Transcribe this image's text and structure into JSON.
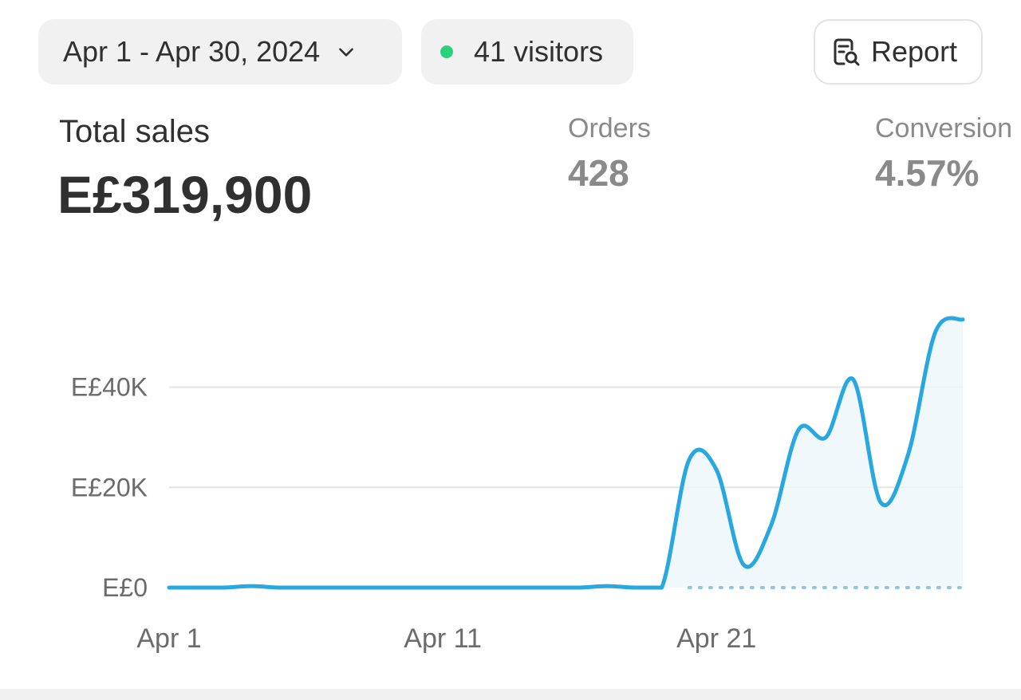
{
  "toolbar": {
    "date_range": "Apr 1 - Apr 30, 2024",
    "visitors": "41 visitors",
    "report_label": "Report"
  },
  "metrics": {
    "total_sales_label": "Total sales",
    "total_sales_value": "E£319,900",
    "orders_label": "Orders",
    "orders_value": "428",
    "conversion_label": "Conversion",
    "conversion_value": "4.57%"
  },
  "colors": {
    "line": "#29a8e0",
    "live_dot": "#29d17d",
    "comparison": "#8fc6dc"
  },
  "chart_data": {
    "type": "line",
    "x_ticks": [
      "Apr 1",
      "Apr 11",
      "Apr 21"
    ],
    "y_ticks": [
      "E£0",
      "E£20K",
      "E£40K"
    ],
    "ylim": [
      0,
      56000
    ],
    "x": [
      "Apr 1",
      "Apr 2",
      "Apr 3",
      "Apr 4",
      "Apr 5",
      "Apr 6",
      "Apr 7",
      "Apr 8",
      "Apr 9",
      "Apr 10",
      "Apr 11",
      "Apr 12",
      "Apr 13",
      "Apr 14",
      "Apr 15",
      "Apr 16",
      "Apr 17",
      "Apr 18",
      "Apr 19",
      "Apr 20",
      "Apr 21",
      "Apr 22",
      "Apr 23",
      "Apr 24",
      "Apr 25",
      "Apr 26",
      "Apr 27",
      "Apr 28",
      "Apr 29",
      "Apr 30"
    ],
    "series": [
      {
        "name": "",
        "values": [
          0,
          0,
          0,
          300,
          0,
          0,
          0,
          0,
          0,
          0,
          0,
          0,
          0,
          0,
          0,
          0,
          300,
          0,
          0,
          25500,
          23500,
          4500,
          12500,
          31500,
          30000,
          41500,
          17000,
          26500,
          51000,
          53500
        ]
      }
    ],
    "comparison_baseline_from": "Apr 20",
    "grid": true
  }
}
